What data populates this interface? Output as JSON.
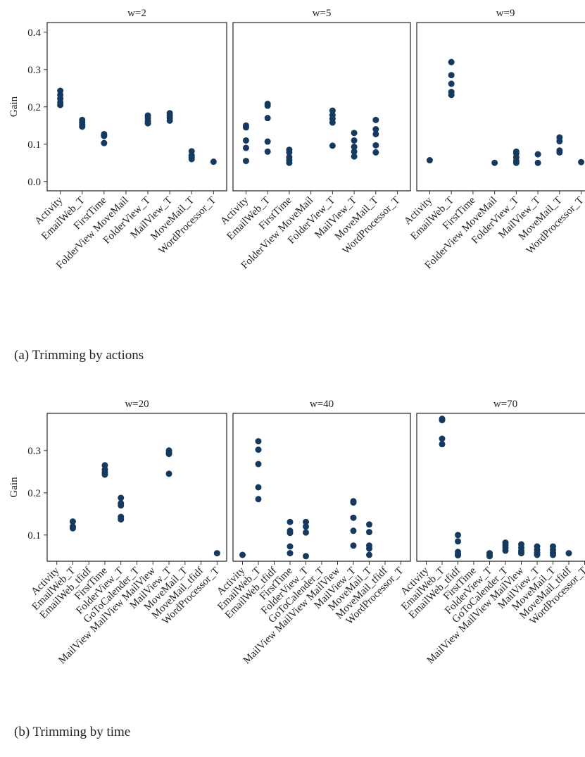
{
  "chart_data": [
    {
      "type": "scatter",
      "caption": "(a) Trimming by actions",
      "ylabel": "Gain",
      "color": "#163a5f",
      "ylim": [
        -0.025,
        0.426
      ],
      "yticks": [
        {
          "value": 0,
          "label": "0.0"
        },
        0.1,
        0.2,
        0.3,
        0.4
      ],
      "categories": [
        "Activity",
        "EmailWeb_T",
        "FirstTime",
        "FolderView MoveMail",
        "FolderView_T",
        "MailView_T",
        "MoveMail_T",
        "WordProcessor_T"
      ],
      "facets": [
        {
          "title": "w=2",
          "x": [
            "Activity",
            "Activity",
            "Activity",
            "Activity",
            "Activity",
            "EmailWeb_T",
            "EmailWeb_T",
            "EmailWeb_T",
            "EmailWeb_T",
            "FirstTime",
            "FirstTime",
            "FirstTime",
            "FolderView_T",
            "FolderView_T",
            "FolderView_T",
            "FolderView_T",
            "MailView_T",
            "MailView_T",
            "MailView_T",
            "MailView_T",
            "MoveMail_T",
            "MoveMail_T",
            "MoveMail_T",
            "MoveMail_T",
            "WordProcessor_T"
          ],
          "values": [
            0.243,
            0.232,
            0.222,
            0.212,
            0.205,
            0.165,
            0.158,
            0.152,
            0.147,
            0.127,
            0.122,
            0.103,
            0.177,
            0.17,
            0.162,
            0.156,
            0.183,
            0.177,
            0.17,
            0.163,
            0.081,
            0.07,
            0.065,
            0.06,
            0.053
          ]
        },
        {
          "title": "w=5",
          "x": [
            "Activity",
            "Activity",
            "Activity",
            "Activity",
            "Activity",
            "EmailWeb_T",
            "EmailWeb_T",
            "EmailWeb_T",
            "EmailWeb_T",
            "EmailWeb_T",
            "FirstTime",
            "FirstTime",
            "FirstTime",
            "FirstTime",
            "FirstTime",
            "FolderView_T",
            "FolderView_T",
            "FolderView_T",
            "FolderView_T",
            "FolderView_T",
            "MailView_T",
            "MailView_T",
            "MailView_T",
            "MailView_T",
            "MailView_T",
            "MoveMail_T",
            "MoveMail_T",
            "MoveMail_T",
            "MoveMail_T",
            "MoveMail_T"
          ],
          "values": [
            0.15,
            0.145,
            0.11,
            0.09,
            0.055,
            0.208,
            0.203,
            0.17,
            0.107,
            0.08,
            0.085,
            0.078,
            0.065,
            0.057,
            0.05,
            0.19,
            0.178,
            0.168,
            0.158,
            0.096,
            0.13,
            0.11,
            0.093,
            0.08,
            0.067,
            0.165,
            0.14,
            0.127,
            0.097,
            0.078
          ]
        },
        {
          "title": "w=9",
          "x": [
            "Activity",
            "EmailWeb_T",
            "EmailWeb_T",
            "EmailWeb_T",
            "EmailWeb_T",
            "EmailWeb_T",
            "FolderView MoveMail",
            "FolderView_T",
            "FolderView_T",
            "FolderView_T",
            "FolderView_T",
            "FolderView_T",
            "MailView_T",
            "MailView_T",
            "MoveMail_T",
            "MoveMail_T",
            "MoveMail_T",
            "MoveMail_T",
            "WordProcessor_T"
          ],
          "values": [
            0.057,
            0.32,
            0.285,
            0.262,
            0.24,
            0.232,
            0.05,
            0.08,
            0.075,
            0.065,
            0.055,
            0.05,
            0.073,
            0.05,
            0.118,
            0.108,
            0.083,
            0.078,
            0.052
          ]
        }
      ]
    },
    {
      "type": "scatter",
      "caption": "(b) Trimming by time",
      "ylabel": "Gain",
      "color": "#163a5f",
      "ylim": [
        0.038,
        0.388
      ],
      "yticks": [
        0.1,
        0.2,
        0.3
      ],
      "categories": [
        "Activity",
        "EmailWeb_T",
        "EmailWeb_tfidf",
        "FirstTime",
        "FolderView_T",
        "GoToCalender_T",
        "MailView MailView MailView",
        "MailView_T",
        "MoveMail_T",
        "MoveMail_tfidf",
        "WordProcessor_T"
      ],
      "facets": [
        {
          "title": "w=20",
          "x": [
            "EmailWeb_T",
            "EmailWeb_T",
            "EmailWeb_T",
            "FirstTime",
            "FirstTime",
            "FirstTime",
            "FirstTime",
            "FolderView_T",
            "FolderView_T",
            "FolderView_T",
            "FolderView_T",
            "FolderView_T",
            "MailView_T",
            "MailView_T",
            "MailView_T",
            "MailView_T",
            "WordProcessor_T"
          ],
          "values": [
            0.132,
            0.12,
            0.116,
            0.265,
            0.255,
            0.248,
            0.243,
            0.188,
            0.175,
            0.17,
            0.143,
            0.137,
            0.3,
            0.295,
            0.292,
            0.245,
            0.057
          ]
        },
        {
          "title": "w=40",
          "x": [
            "Activity",
            "EmailWeb_T",
            "EmailWeb_T",
            "EmailWeb_T",
            "EmailWeb_T",
            "EmailWeb_T",
            "FirstTime",
            "FirstTime",
            "FirstTime",
            "FirstTime",
            "FirstTime",
            "FolderView_T",
            "FolderView_T",
            "FolderView_T",
            "FolderView_T",
            "MailView_T",
            "MailView_T",
            "MailView_T",
            "MailView_T",
            "MailView_T",
            "MoveMail_T",
            "MoveMail_T",
            "MoveMail_T",
            "MoveMail_T",
            "MoveMail_T"
          ],
          "values": [
            0.053,
            0.322,
            0.302,
            0.268,
            0.213,
            0.185,
            0.131,
            0.11,
            0.105,
            0.073,
            0.057,
            0.131,
            0.12,
            0.106,
            0.05,
            0.18,
            0.177,
            0.141,
            0.11,
            0.075,
            0.125,
            0.107,
            0.075,
            0.068,
            0.053
          ]
        },
        {
          "title": "w=70",
          "x": [
            "EmailWeb_T",
            "EmailWeb_T",
            "EmailWeb_T",
            "EmailWeb_T",
            "EmailWeb_tfidf",
            "EmailWeb_tfidf",
            "EmailWeb_tfidf",
            "EmailWeb_tfidf",
            "EmailWeb_tfidf",
            "FolderView_T",
            "FolderView_T",
            "FolderView_T",
            "GoToCalender_T",
            "GoToCalender_T",
            "GoToCalender_T",
            "GoToCalender_T",
            "MailView MailView MailView",
            "MailView MailView MailView",
            "MailView MailView MailView",
            "MailView MailView MailView",
            "MailView_T",
            "MailView_T",
            "MailView_T",
            "MailView_T",
            "MoveMail_T",
            "MoveMail_T",
            "MoveMail_T",
            "MoveMail_T",
            "MoveMail_tfidf"
          ],
          "values": [
            0.375,
            0.372,
            0.328,
            0.315,
            0.1,
            0.085,
            0.06,
            0.055,
            0.052,
            0.057,
            0.052,
            0.05,
            0.082,
            0.076,
            0.07,
            0.063,
            0.078,
            0.07,
            0.062,
            0.057,
            0.073,
            0.065,
            0.058,
            0.053,
            0.073,
            0.065,
            0.058,
            0.053,
            0.057
          ]
        }
      ]
    }
  ]
}
